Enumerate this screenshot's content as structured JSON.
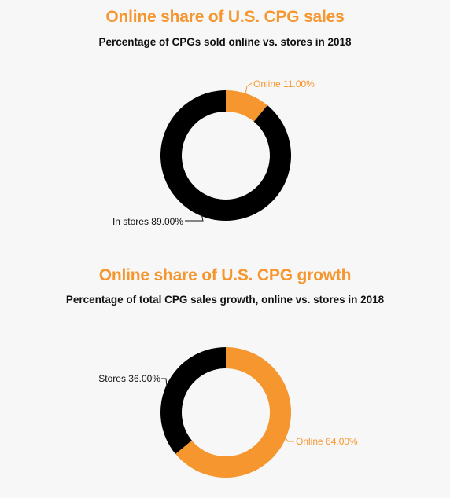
{
  "colors": {
    "accent": "#f5962f",
    "stores": "#000000",
    "label_dark": "#111111",
    "background": "#f7f7f7"
  },
  "chart_data": [
    {
      "type": "pie",
      "title": "Online share of U.S. CPG sales",
      "subtitle": "Percentage of CPGs sold online vs. stores in 2018",
      "series": [
        {
          "name": "Online",
          "value": 11.0,
          "label": "Online 11.00%",
          "color": "#f5962f"
        },
        {
          "name": "In stores",
          "value": 89.0,
          "label": "In stores 89.00%",
          "color": "#000000"
        }
      ],
      "donut": true,
      "legend": "none"
    },
    {
      "type": "pie",
      "title": "Online share of U.S. CPG growth",
      "subtitle": "Percentage of total CPG sales growth, online vs. stores in 2018",
      "series": [
        {
          "name": "Online",
          "value": 64.0,
          "label": "Online 64.00%",
          "color": "#f5962f"
        },
        {
          "name": "Stores",
          "value": 36.0,
          "label": "Stores 36.00%",
          "color": "#000000"
        }
      ],
      "donut": true,
      "legend": "none"
    }
  ]
}
